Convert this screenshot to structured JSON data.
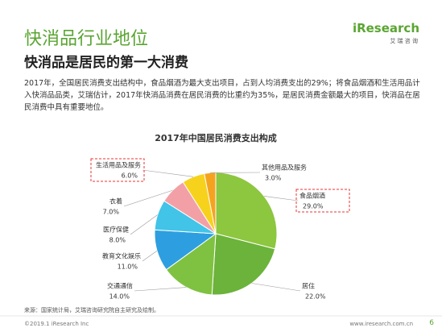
{
  "header": {
    "title": "快消品行业地位",
    "subtitle": "快消品是居民的第一大消费",
    "logo": "iResearch",
    "logo_sub": "艾 瑞 咨 询"
  },
  "paragraph": "2017年，全国居民消费支出结构中，食品烟酒为最大支出项目，占到人均消费支出的29%；将食品烟酒和生活用品计入快消品品类，艾瑞估计，2017年快消品消费在居民消费的比重约为35%，是居民消费金额最大的项目，快消品在居民消费中具有重要地位。",
  "chart_data": {
    "type": "pie",
    "title": "2017年中国居民消费支出构成",
    "categories": [
      "食品烟酒",
      "居住",
      "交通通信",
      "教育文化娱乐",
      "医疗保健",
      "衣着",
      "生活用品及服务",
      "其他用品及服务"
    ],
    "values": [
      29.0,
      22.0,
      14.0,
      11.0,
      8.0,
      7.0,
      6.0,
      3.0
    ],
    "value_labels": [
      "29.0%",
      "22.0%",
      "14.0%",
      "11.0%",
      "8.0%",
      "7.0%",
      "6.0%",
      "3.0%"
    ],
    "colors": [
      "#8dc63f",
      "#6bb33a",
      "#7fc241",
      "#2d9fe0",
      "#41c4e8",
      "#f2a0a6",
      "#f7d21c",
      "#f5a31f"
    ]
  },
  "footer": {
    "source": "来源：国家统计局，艾瑞咨询研究院自主研究及绘制。",
    "copyright": "©2019.1 iResearch Inc",
    "site": "www.iresearch.com.cn",
    "page": "6"
  }
}
